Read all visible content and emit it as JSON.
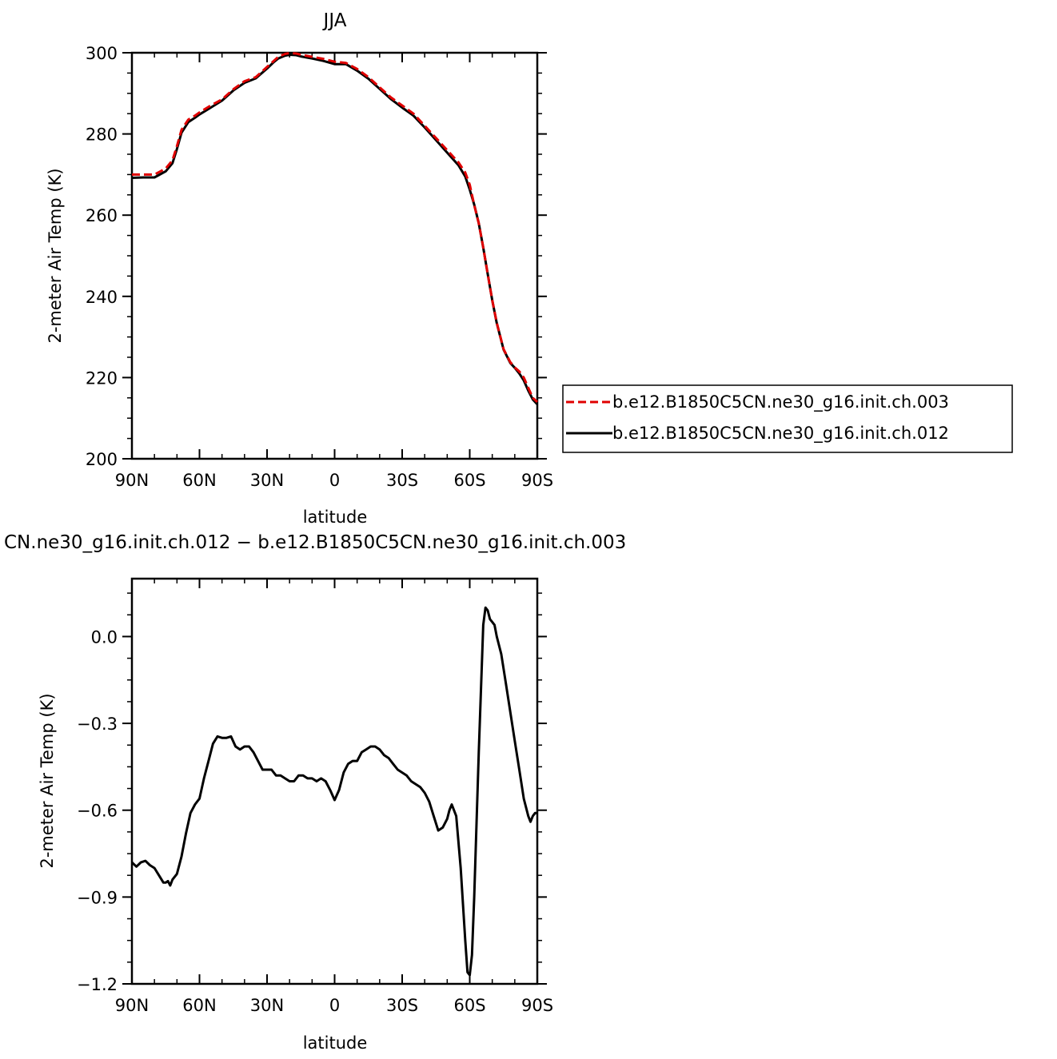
{
  "chart_data": [
    {
      "type": "line",
      "title": "JJA",
      "xlabel": "latitude",
      "ylabel": "2-meter Air Temp (K)",
      "x_ticks": [
        "90N",
        "60N",
        "30N",
        "0",
        "30S",
        "60S",
        "90S"
      ],
      "y_ticks": [
        "200",
        "220",
        "240",
        "260",
        "280",
        "300"
      ],
      "xlim": [
        90,
        -90
      ],
      "ylim": [
        200,
        300
      ],
      "legend_position": "right",
      "series": [
        {
          "name": "b.e12.B1850C5CN.ne30_g16.init.ch.003",
          "color": "#e00000",
          "style": "dashed",
          "x": [
            90,
            85,
            80,
            75,
            72,
            70,
            68,
            65,
            62,
            60,
            55,
            50,
            45,
            40,
            35,
            30,
            27,
            25,
            22,
            20,
            17,
            15,
            10,
            5,
            0,
            -5,
            -10,
            -15,
            -20,
            -25,
            -30,
            -35,
            -40,
            -45,
            -50,
            -55,
            -58,
            -60,
            -62,
            -64,
            -66,
            -68,
            -70,
            -72,
            -75,
            -78,
            -80,
            -82,
            -84,
            -86,
            -88,
            -90
          ],
          "y": [
            270.0,
            270.0,
            270.0,
            271.5,
            273.5,
            277.0,
            281.0,
            283.5,
            284.5,
            285.3,
            287.0,
            288.5,
            291.0,
            293.0,
            294.0,
            296.5,
            298.0,
            299.0,
            299.7,
            299.9,
            299.8,
            299.5,
            299.0,
            298.5,
            297.8,
            297.5,
            296.0,
            294.0,
            291.5,
            289.0,
            287.0,
            285.0,
            282.0,
            279.0,
            276.0,
            273.0,
            270.5,
            267.5,
            262.5,
            258.0,
            252.0,
            245.5,
            239.0,
            233.5,
            227.0,
            223.8,
            222.5,
            221.5,
            220.0,
            217.5,
            215.0,
            214.0
          ]
        },
        {
          "name": "b.e12.B1850C5CN.ne30_g16.init.ch.012",
          "color": "#000000",
          "style": "solid",
          "x": [
            90,
            85,
            80,
            75,
            72,
            70,
            68,
            65,
            62,
            60,
            55,
            50,
            45,
            40,
            35,
            30,
            27,
            25,
            22,
            20,
            17,
            15,
            10,
            5,
            0,
            -5,
            -10,
            -15,
            -20,
            -25,
            -30,
            -35,
            -40,
            -45,
            -50,
            -55,
            -58,
            -60,
            -62,
            -64,
            -66,
            -68,
            -70,
            -72,
            -75,
            -78,
            -80,
            -82,
            -84,
            -86,
            -88,
            -90
          ],
          "y": [
            269.2,
            269.3,
            269.3,
            270.8,
            272.8,
            276.3,
            280.3,
            282.9,
            284.0,
            284.8,
            286.5,
            288.2,
            290.7,
            292.6,
            293.7,
            296.1,
            297.7,
            298.6,
            299.3,
            299.5,
            299.4,
            299.1,
            298.6,
            298.0,
            297.2,
            297.2,
            295.6,
            293.6,
            291.1,
            288.6,
            286.5,
            284.5,
            281.6,
            278.5,
            275.4,
            272.3,
            269.5,
            266.3,
            262.6,
            258.0,
            252.0,
            245.5,
            239.0,
            233.4,
            226.9,
            223.6,
            222.4,
            221.0,
            219.3,
            216.8,
            214.6,
            213.4
          ]
        }
      ]
    },
    {
      "type": "line",
      "title": "CN.ne30_g16.init.ch.012 − b.e12.B1850C5CN.ne30_g16.init.ch.003",
      "xlabel": "latitude",
      "ylabel": "2-meter Air Temp (K)",
      "x_ticks": [
        "90N",
        "60N",
        "30N",
        "0",
        "30S",
        "60S",
        "90S"
      ],
      "y_ticks": [
        "0.0",
        "−0.3",
        "−0.6",
        "−0.9",
        "−1.2"
      ],
      "xlim": [
        90,
        -90
      ],
      "ylim": [
        -1.2,
        0.2
      ],
      "series": [
        {
          "color": "#000000",
          "style": "solid",
          "x": [
            90,
            88,
            86,
            84,
            82,
            80,
            78,
            76,
            75,
            74,
            73,
            72,
            70,
            68,
            66,
            64,
            62,
            60,
            58,
            56,
            54,
            52,
            50,
            48,
            46,
            44,
            42,
            40,
            38,
            36,
            34,
            32,
            30,
            28,
            26,
            24,
            22,
            20,
            18,
            16,
            14,
            12,
            10,
            8,
            6,
            4,
            2,
            0,
            -2,
            -4,
            -6,
            -8,
            -10,
            -12,
            -14,
            -16,
            -18,
            -20,
            -22,
            -24,
            -26,
            -28,
            -30,
            -32,
            -34,
            -36,
            -38,
            -40,
            -42,
            -44,
            -46,
            -48,
            -50,
            -51,
            -52,
            -54,
            -56,
            -58,
            -59,
            -60,
            -61,
            -62,
            -64,
            -66,
            -67,
            -68,
            -69,
            -70,
            -71,
            -72,
            -74,
            -76,
            -78,
            -80,
            -82,
            -84,
            -86,
            -87,
            -88,
            -89,
            -90
          ],
          "y": [
            -0.78,
            -0.795,
            -0.78,
            -0.775,
            -0.79,
            -0.8,
            -0.825,
            -0.85,
            -0.85,
            -0.845,
            -0.86,
            -0.84,
            -0.82,
            -0.76,
            -0.68,
            -0.61,
            -0.58,
            -0.56,
            -0.49,
            -0.43,
            -0.37,
            -0.345,
            -0.35,
            -0.35,
            -0.345,
            -0.38,
            -0.39,
            -0.38,
            -0.38,
            -0.4,
            -0.43,
            -0.46,
            -0.46,
            -0.46,
            -0.48,
            -0.48,
            -0.49,
            -0.5,
            -0.5,
            -0.48,
            -0.48,
            -0.49,
            -0.49,
            -0.5,
            -0.49,
            -0.5,
            -0.53,
            -0.565,
            -0.53,
            -0.47,
            -0.44,
            -0.43,
            -0.43,
            -0.4,
            -0.39,
            -0.38,
            -0.38,
            -0.39,
            -0.41,
            -0.42,
            -0.44,
            -0.46,
            -0.47,
            -0.48,
            -0.5,
            -0.51,
            -0.52,
            -0.54,
            -0.57,
            -0.62,
            -0.67,
            -0.66,
            -0.63,
            -0.6,
            -0.58,
            -0.62,
            -0.8,
            -1.05,
            -1.16,
            -1.17,
            -1.1,
            -0.9,
            -0.4,
            0.04,
            0.1,
            0.09,
            0.06,
            0.05,
            0.04,
            0.0,
            -0.06,
            -0.16,
            -0.26,
            -0.36,
            -0.46,
            -0.56,
            -0.62,
            -0.64,
            -0.62,
            -0.61,
            -0.61
          ]
        }
      ]
    }
  ],
  "legend": {
    "entries": [
      {
        "label": "b.e12.B1850C5CN.ne30_g16.init.ch.003",
        "color": "#e00000",
        "style": "dashed"
      },
      {
        "label": "b.e12.B1850C5CN.ne30_g16.init.ch.012",
        "color": "#000000",
        "style": "solid"
      }
    ]
  }
}
